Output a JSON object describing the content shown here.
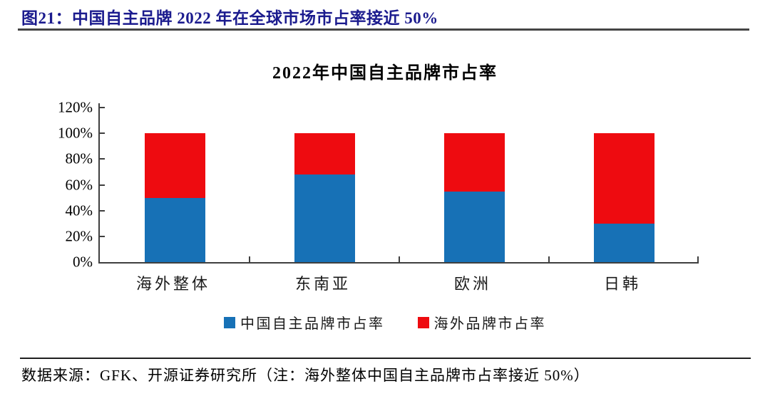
{
  "figure_header": {
    "label": "图21：中国自主品牌 2022 年在全球市场市占率接近 50%",
    "accent_color": "#1b1b8e"
  },
  "chart_data": {
    "type": "bar",
    "stacked": true,
    "title": "2022年中国自主品牌市占率",
    "categories": [
      "海外整体",
      "东南亚",
      "欧洲",
      "日韩"
    ],
    "series": [
      {
        "name": "中国自主品牌市占率",
        "color": "#1771b6",
        "values": [
          50,
          68,
          55,
          30
        ]
      },
      {
        "name": "海外品牌市占率",
        "color": "#ee0b10",
        "values": [
          50,
          32,
          45,
          70
        ]
      }
    ],
    "unit": "%",
    "y_axis": {
      "min": 0,
      "max": 120,
      "step": 20,
      "tick_labels": [
        "0%",
        "20%",
        "40%",
        "60%",
        "80%",
        "100%",
        "120%"
      ]
    },
    "legend_position": "bottom",
    "grid": false,
    "axis_color": "#3f3f3f"
  },
  "footer": {
    "source_note": "数据来源：GFK、开源证券研究所（注：海外整体中国自主品牌市占率接近 50%）"
  }
}
